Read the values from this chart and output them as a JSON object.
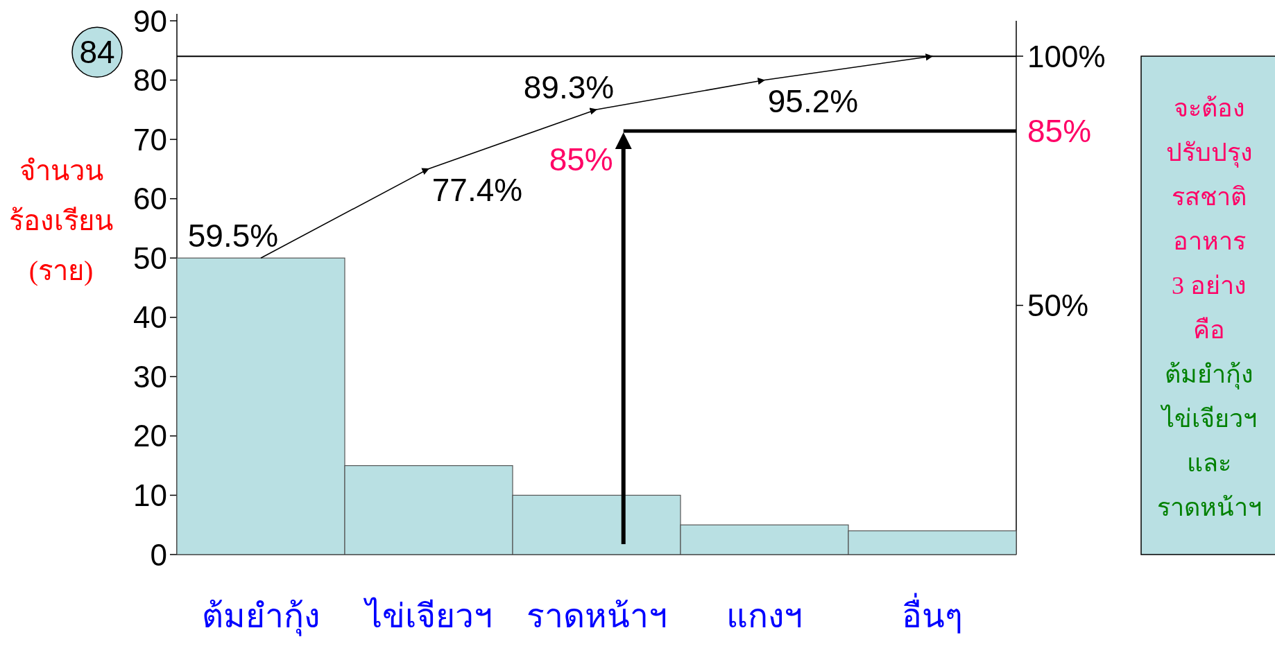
{
  "chart_data": {
    "type": "bar",
    "categories": [
      "ต้มยำกุ้ง",
      "ไข่เจียวฯ",
      "ราดหน้าฯ",
      "แกงฯ",
      "อื่นๆ"
    ],
    "ylabel": "จำนวน\nร้องเรียน\n(ราย)",
    "ylim": [
      0,
      90
    ],
    "yticks": [
      0,
      10,
      20,
      30,
      40,
      50,
      60,
      70,
      80,
      90
    ],
    "y2lim": [
      0,
      107.1
    ],
    "y2ticks": [
      {
        "value": 50,
        "label": "50%"
      },
      {
        "value": 100,
        "label": "100%"
      }
    ],
    "series": [
      {
        "color": "#b9e0e3",
        "values": [
          50,
          15,
          10,
          5,
          4
        ]
      },
      {
        "type": "line",
        "axis": "y2",
        "color": "#000000",
        "values": [
          59.5,
          77.4,
          89.3,
          95.2,
          100
        ],
        "value_labels": [
          "59.5%",
          "77.4%",
          "89.3%",
          "95.2%",
          null
        ]
      }
    ],
    "ref_lines": [
      {
        "axis": "y",
        "value": 84,
        "label": "84",
        "color": "#000000"
      },
      {
        "axis": "y2",
        "value": 85,
        "label": "85%",
        "color": "#000000"
      }
    ],
    "annotations": [
      "จะต้อง\nปรับปรุง\nรสชาติ\nอาหาร\n3 อย่าง\nคือ",
      "ต้มยำกุ้ง\nไข่เจียวฯ\nและ\nราดหน้าฯ"
    ],
    "grid": false,
    "legend": false
  }
}
